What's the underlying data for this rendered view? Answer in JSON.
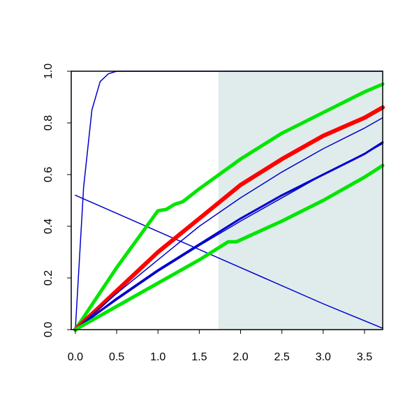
{
  "chart_data": {
    "type": "line",
    "title": "",
    "xlabel": "",
    "ylabel": "",
    "xlim": [
      -0.05,
      3.72
    ],
    "ylim": [
      0,
      1.0
    ],
    "x_ticks": [
      "0.0",
      "0.5",
      "1.0",
      "1.5",
      "2.0",
      "2.5",
      "3.0",
      "3.5"
    ],
    "y_ticks": [
      "0.0",
      "0.2",
      "0.4",
      "0.6",
      "0.8",
      "1.0"
    ],
    "shaded_region": {
      "x_start": 1.73,
      "x_end": 3.72,
      "color": "#e0ecec"
    },
    "grid": false,
    "legend": "none",
    "series": [
      {
        "color": "#0000cc",
        "width": 1.5,
        "points": [
          [
            0,
            0
          ],
          [
            0.1,
            0.55
          ],
          [
            0.2,
            0.85
          ],
          [
            0.3,
            0.96
          ],
          [
            0.4,
            0.99
          ],
          [
            0.5,
            1.0
          ],
          [
            0.8,
            1.0
          ],
          [
            3.72,
            1.0
          ]
        ]
      },
      {
        "color": "#0000cc",
        "width": 1.5,
        "points": [
          [
            0,
            0.52
          ],
          [
            1.0,
            0.38
          ],
          [
            2.0,
            0.24
          ],
          [
            3.0,
            0.1
          ],
          [
            3.72,
            0.005
          ]
        ]
      },
      {
        "color": "#00e600",
        "width": 5,
        "points": [
          [
            0,
            0
          ],
          [
            0.5,
            0.24
          ],
          [
            1.0,
            0.46
          ],
          [
            1.1,
            0.465
          ],
          [
            1.2,
            0.485
          ],
          [
            1.3,
            0.495
          ],
          [
            1.5,
            0.545
          ],
          [
            2.0,
            0.66
          ],
          [
            2.5,
            0.76
          ],
          [
            3.0,
            0.84
          ],
          [
            3.5,
            0.92
          ],
          [
            3.72,
            0.95
          ]
        ]
      },
      {
        "color": "#ff0000",
        "width": 6,
        "points": [
          [
            0,
            0
          ],
          [
            0.5,
            0.15
          ],
          [
            1.0,
            0.3
          ],
          [
            1.5,
            0.43
          ],
          [
            2.0,
            0.56
          ],
          [
            2.5,
            0.66
          ],
          [
            3.0,
            0.75
          ],
          [
            3.5,
            0.82
          ],
          [
            3.72,
            0.86
          ]
        ]
      },
      {
        "color": "#0000cc",
        "width": 1.5,
        "points": [
          [
            0,
            0
          ],
          [
            0.5,
            0.14
          ],
          [
            1.0,
            0.27
          ],
          [
            1.5,
            0.4
          ],
          [
            2.0,
            0.51
          ],
          [
            2.5,
            0.61
          ],
          [
            3.0,
            0.7
          ],
          [
            3.5,
            0.78
          ],
          [
            3.72,
            0.82
          ]
        ]
      },
      {
        "color": "#0000cc",
        "width": 3,
        "points": [
          [
            0,
            0
          ],
          [
            0.5,
            0.12
          ],
          [
            1.0,
            0.23
          ],
          [
            1.5,
            0.33
          ],
          [
            2.0,
            0.43
          ],
          [
            2.5,
            0.52
          ],
          [
            3.0,
            0.6
          ],
          [
            3.5,
            0.68
          ],
          [
            3.72,
            0.725
          ]
        ]
      },
      {
        "color": "#0000cc",
        "width": 1.5,
        "points": [
          [
            0,
            0
          ],
          [
            0.5,
            0.115
          ],
          [
            1.0,
            0.225
          ],
          [
            1.5,
            0.325
          ],
          [
            2.0,
            0.42
          ],
          [
            2.5,
            0.51
          ],
          [
            3.0,
            0.6
          ],
          [
            3.5,
            0.68
          ],
          [
            3.72,
            0.72
          ]
        ]
      },
      {
        "color": "#00e600",
        "width": 5,
        "points": [
          [
            0,
            0
          ],
          [
            0.5,
            0.09
          ],
          [
            1.0,
            0.18
          ],
          [
            1.5,
            0.27
          ],
          [
            1.85,
            0.34
          ],
          [
            1.95,
            0.34
          ],
          [
            2.5,
            0.42
          ],
          [
            3.0,
            0.5
          ],
          [
            3.5,
            0.59
          ],
          [
            3.72,
            0.635
          ]
        ]
      }
    ]
  }
}
